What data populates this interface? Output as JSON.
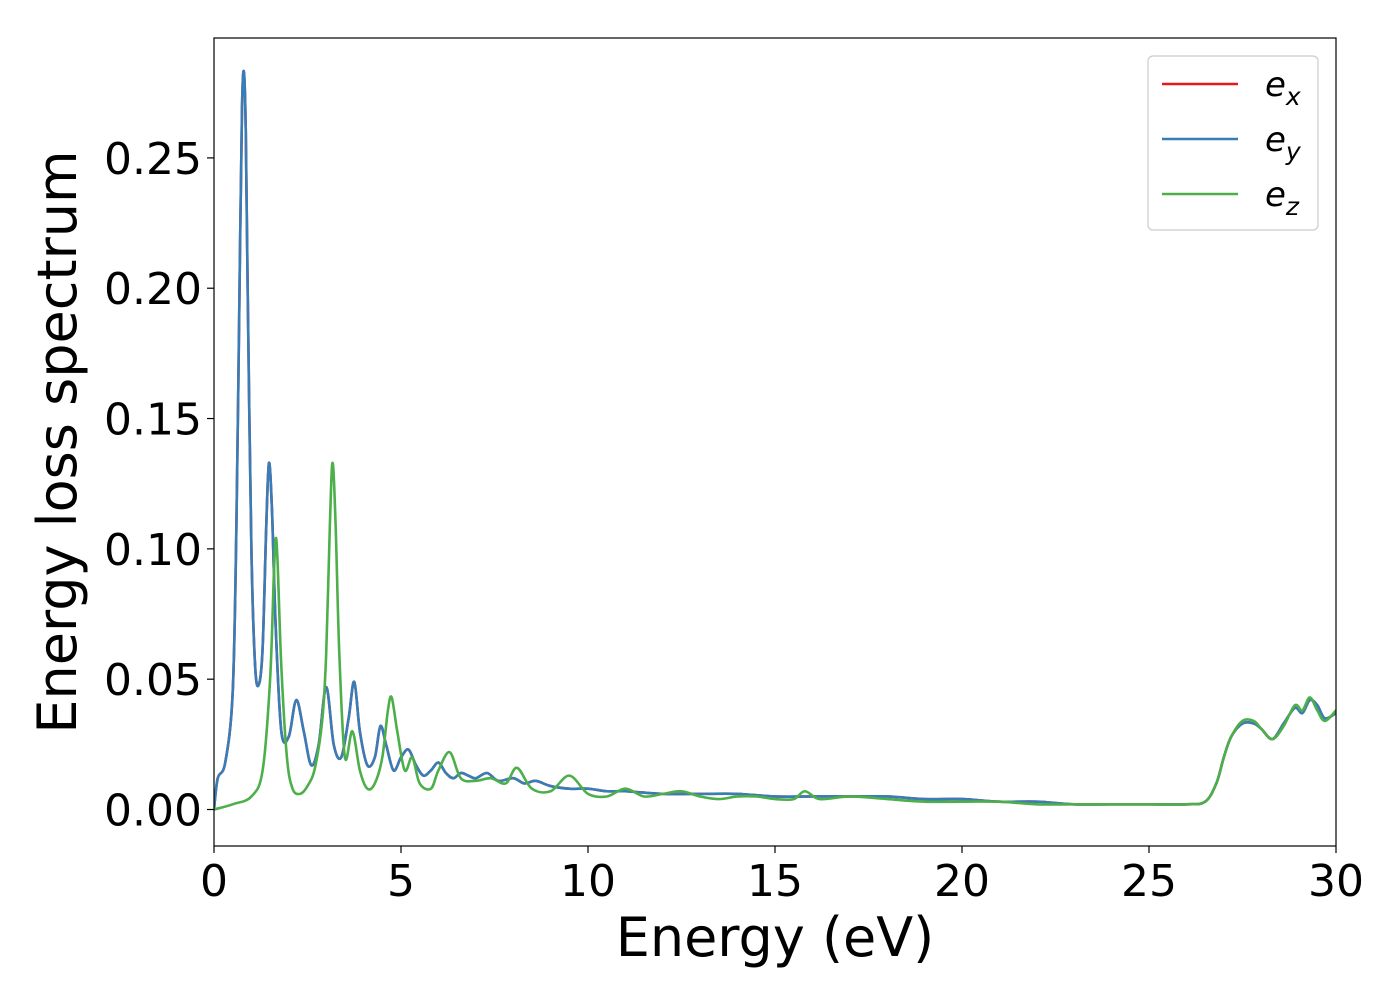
{
  "chart_data": {
    "type": "line",
    "title": "",
    "xlabel": "Energy (eV)",
    "ylabel": "Energy loss spectrum",
    "xlim": [
      0,
      30
    ],
    "ylim": [
      -0.014,
      0.296
    ],
    "xticks": [
      0,
      5,
      10,
      15,
      20,
      25,
      30
    ],
    "xtick_labels": [
      "0",
      "5",
      "10",
      "15",
      "20",
      "25",
      "30"
    ],
    "yticks": [
      0.0,
      0.05,
      0.1,
      0.15,
      0.2,
      0.25
    ],
    "ytick_labels": [
      "0.00",
      "0.05",
      "0.10",
      "0.15",
      "0.20",
      "0.25"
    ],
    "grid": false,
    "legend_position": "top-right",
    "series": [
      {
        "name": "e",
        "subscript": "x",
        "color": "#e41a1c",
        "x": [
          0.0,
          0.1,
          0.3,
          0.5,
          0.6,
          0.7,
          0.75,
          0.8,
          0.85,
          0.9,
          1.0,
          1.1,
          1.2,
          1.3,
          1.4,
          1.47,
          1.55,
          1.65,
          1.8,
          2.0,
          2.2,
          2.4,
          2.6,
          2.8,
          3.0,
          3.2,
          3.4,
          3.6,
          3.75,
          3.9,
          4.1,
          4.3,
          4.45,
          4.6,
          4.8,
          5.0,
          5.2,
          5.4,
          5.6,
          5.8,
          6.0,
          6.2,
          6.4,
          6.6,
          6.8,
          7.0,
          7.3,
          7.6,
          8.0,
          8.3,
          8.6,
          9.0,
          9.5,
          10.0,
          10.5,
          11.0,
          12.0,
          13.0,
          14.0,
          15.0,
          16.0,
          17.0,
          18.0,
          19.0,
          20.0,
          21.0,
          22.0,
          23.0,
          24.0,
          25.0,
          26.0,
          26.5,
          26.8,
          27.0,
          27.2,
          27.5,
          27.8,
          28.0,
          28.3,
          28.6,
          28.9,
          29.1,
          29.3,
          29.5,
          29.7,
          30.0
        ],
        "y": [
          0.0,
          0.012,
          0.018,
          0.045,
          0.11,
          0.22,
          0.27,
          0.283,
          0.26,
          0.2,
          0.1,
          0.055,
          0.048,
          0.062,
          0.11,
          0.133,
          0.115,
          0.07,
          0.03,
          0.028,
          0.042,
          0.03,
          0.017,
          0.025,
          0.047,
          0.025,
          0.02,
          0.035,
          0.049,
          0.03,
          0.017,
          0.02,
          0.032,
          0.025,
          0.015,
          0.02,
          0.023,
          0.017,
          0.013,
          0.015,
          0.018,
          0.014,
          0.012,
          0.014,
          0.013,
          0.012,
          0.014,
          0.011,
          0.012,
          0.01,
          0.011,
          0.009,
          0.008,
          0.008,
          0.007,
          0.007,
          0.006,
          0.006,
          0.006,
          0.005,
          0.005,
          0.005,
          0.005,
          0.004,
          0.004,
          0.003,
          0.003,
          0.002,
          0.002,
          0.002,
          0.002,
          0.003,
          0.01,
          0.02,
          0.028,
          0.033,
          0.033,
          0.031,
          0.027,
          0.033,
          0.039,
          0.037,
          0.042,
          0.04,
          0.035,
          0.037
        ]
      },
      {
        "name": "e",
        "subscript": "y",
        "color": "#377eb8",
        "x": [
          0.0,
          0.1,
          0.3,
          0.5,
          0.6,
          0.7,
          0.75,
          0.8,
          0.85,
          0.9,
          1.0,
          1.1,
          1.2,
          1.3,
          1.4,
          1.47,
          1.55,
          1.65,
          1.8,
          2.0,
          2.2,
          2.4,
          2.6,
          2.8,
          3.0,
          3.2,
          3.4,
          3.6,
          3.75,
          3.9,
          4.1,
          4.3,
          4.45,
          4.6,
          4.8,
          5.0,
          5.2,
          5.4,
          5.6,
          5.8,
          6.0,
          6.2,
          6.4,
          6.6,
          6.8,
          7.0,
          7.3,
          7.6,
          8.0,
          8.3,
          8.6,
          9.0,
          9.5,
          10.0,
          10.5,
          11.0,
          12.0,
          13.0,
          14.0,
          15.0,
          16.0,
          17.0,
          18.0,
          19.0,
          20.0,
          21.0,
          22.0,
          23.0,
          24.0,
          25.0,
          26.0,
          26.5,
          26.8,
          27.0,
          27.2,
          27.5,
          27.8,
          28.0,
          28.3,
          28.6,
          28.9,
          29.1,
          29.3,
          29.5,
          29.7,
          30.0
        ],
        "y": [
          0.0,
          0.012,
          0.018,
          0.045,
          0.11,
          0.22,
          0.27,
          0.283,
          0.26,
          0.2,
          0.1,
          0.055,
          0.048,
          0.062,
          0.11,
          0.133,
          0.115,
          0.07,
          0.03,
          0.028,
          0.042,
          0.03,
          0.017,
          0.025,
          0.047,
          0.025,
          0.02,
          0.035,
          0.049,
          0.03,
          0.017,
          0.02,
          0.032,
          0.025,
          0.015,
          0.02,
          0.023,
          0.017,
          0.013,
          0.015,
          0.018,
          0.014,
          0.012,
          0.014,
          0.013,
          0.012,
          0.014,
          0.011,
          0.012,
          0.01,
          0.011,
          0.009,
          0.008,
          0.008,
          0.007,
          0.007,
          0.006,
          0.006,
          0.006,
          0.005,
          0.005,
          0.005,
          0.005,
          0.004,
          0.004,
          0.003,
          0.003,
          0.002,
          0.002,
          0.002,
          0.002,
          0.003,
          0.01,
          0.02,
          0.028,
          0.033,
          0.033,
          0.031,
          0.027,
          0.033,
          0.039,
          0.037,
          0.042,
          0.04,
          0.035,
          0.037
        ]
      },
      {
        "name": "e",
        "subscript": "z",
        "color": "#4daf4a",
        "x": [
          0.0,
          0.5,
          1.0,
          1.3,
          1.5,
          1.6,
          1.65,
          1.7,
          1.8,
          1.95,
          2.1,
          2.3,
          2.5,
          2.7,
          2.9,
          3.0,
          3.1,
          3.17,
          3.25,
          3.35,
          3.5,
          3.7,
          3.9,
          4.1,
          4.3,
          4.5,
          4.65,
          4.75,
          4.9,
          5.1,
          5.3,
          5.5,
          5.8,
          6.0,
          6.3,
          6.6,
          7.0,
          7.4,
          7.8,
          8.1,
          8.5,
          9.0,
          9.5,
          10.0,
          10.5,
          11.0,
          11.5,
          12.0,
          12.5,
          13.0,
          13.5,
          14.0,
          14.5,
          15.0,
          15.5,
          15.8,
          16.2,
          17.0,
          18.0,
          19.0,
          20.0,
          21.0,
          22.0,
          23.0,
          24.0,
          25.0,
          26.0,
          26.5,
          26.8,
          27.0,
          27.2,
          27.5,
          27.8,
          28.0,
          28.3,
          28.6,
          28.9,
          29.1,
          29.3,
          29.5,
          29.7,
          30.0
        ],
        "y": [
          0.0,
          0.002,
          0.005,
          0.015,
          0.05,
          0.09,
          0.104,
          0.095,
          0.055,
          0.02,
          0.008,
          0.006,
          0.009,
          0.016,
          0.035,
          0.06,
          0.11,
          0.133,
          0.11,
          0.06,
          0.02,
          0.03,
          0.015,
          0.008,
          0.01,
          0.02,
          0.038,
          0.043,
          0.03,
          0.015,
          0.02,
          0.01,
          0.008,
          0.015,
          0.022,
          0.012,
          0.011,
          0.012,
          0.01,
          0.016,
          0.008,
          0.007,
          0.013,
          0.006,
          0.005,
          0.008,
          0.005,
          0.006,
          0.007,
          0.005,
          0.004,
          0.005,
          0.005,
          0.004,
          0.004,
          0.007,
          0.004,
          0.005,
          0.004,
          0.003,
          0.003,
          0.003,
          0.002,
          0.002,
          0.002,
          0.002,
          0.002,
          0.003,
          0.01,
          0.02,
          0.028,
          0.034,
          0.034,
          0.031,
          0.027,
          0.032,
          0.04,
          0.038,
          0.043,
          0.038,
          0.034,
          0.038
        ]
      }
    ]
  }
}
